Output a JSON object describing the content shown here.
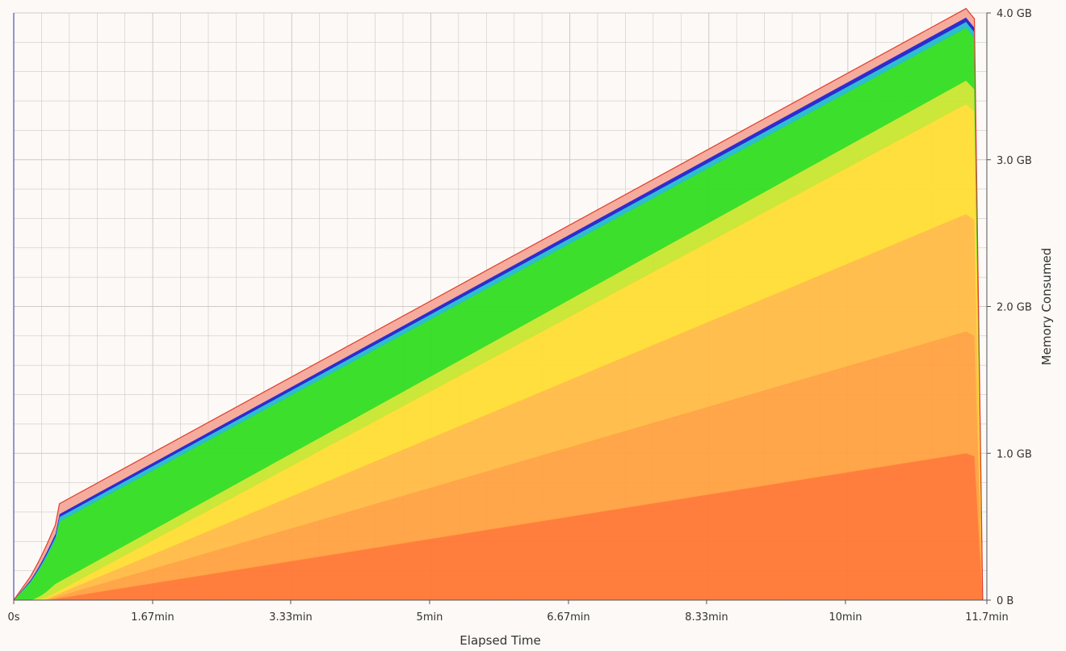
{
  "chart_data": {
    "type": "area",
    "title": "",
    "xlabel": "Elapsed Time",
    "ylabel": "Memory Consumed",
    "x_unit": "min",
    "y_unit": "GB",
    "xlim": [
      0,
      11.7
    ],
    "ylim": [
      0,
      4.0
    ],
    "x_ticks": [
      {
        "value": 0,
        "label": "0s"
      },
      {
        "value": 1.67,
        "label": "1.67min"
      },
      {
        "value": 3.33,
        "label": "3.33min"
      },
      {
        "value": 5,
        "label": "5min"
      },
      {
        "value": 6.67,
        "label": "6.67min"
      },
      {
        "value": 8.33,
        "label": "8.33min"
      },
      {
        "value": 10,
        "label": "10min"
      },
      {
        "value": 11.7,
        "label": "11.7min"
      }
    ],
    "y_ticks": [
      {
        "value": 0,
        "label": "0 B"
      },
      {
        "value": 1.0,
        "label": "1.0 GB"
      },
      {
        "value": 2.0,
        "label": "2.0 GB"
      },
      {
        "value": 3.0,
        "label": "3.0 GB"
      },
      {
        "value": 4.0,
        "label": "4.0 GB"
      }
    ],
    "y_axis_side": "right",
    "grid": true,
    "stacked": true,
    "peak": {
      "x": 11.5,
      "y": 3.93
    },
    "series": [
      {
        "color": "#ff7733",
        "x": [
          0,
          0.4,
          11.45,
          11.55,
          11.65
        ],
        "y": [
          0,
          0,
          1.0,
          0.98,
          0
        ]
      },
      {
        "color": "#ffa040",
        "x": [
          0,
          0.35,
          11.45,
          11.55,
          11.65
        ],
        "y": [
          0,
          0,
          0.83,
          0.82,
          0
        ]
      },
      {
        "color": "#ffbb44",
        "x": [
          0,
          0.3,
          11.45,
          11.55,
          11.65
        ],
        "y": [
          0,
          0,
          0.8,
          0.79,
          0
        ]
      },
      {
        "color": "#ffdd33",
        "x": [
          0,
          0.25,
          11.45,
          11.55,
          11.65
        ],
        "y": [
          0,
          0,
          0.75,
          0.74,
          0
        ]
      },
      {
        "color": "#c8e62f",
        "x": [
          0,
          0.2,
          0.5,
          11.45,
          11.55,
          11.65
        ],
        "y": [
          0,
          0,
          0.06,
          0.16,
          0.15,
          0
        ]
      },
      {
        "color": "#33dd22",
        "x": [
          0,
          0.5,
          0.55,
          11.45,
          11.55,
          11.65
        ],
        "y": [
          0,
          0.3,
          0.41,
          0.36,
          0.35,
          0
        ]
      },
      {
        "color": "#22bbcc",
        "x": [
          0,
          0.5,
          0.55,
          11.45,
          11.55,
          11.65
        ],
        "y": [
          0,
          0.02,
          0.03,
          0.04,
          0.04,
          0
        ]
      },
      {
        "color": "#2222cc",
        "x": [
          0,
          0.5,
          0.55,
          11.45,
          11.55,
          11.65
        ],
        "y": [
          0,
          0.02,
          0.02,
          0.03,
          0.03,
          0
        ]
      },
      {
        "color": "#f5a898",
        "x": [
          0,
          0.5,
          0.55,
          11.45,
          11.55,
          11.65
        ],
        "y": [
          0,
          0.06,
          0.07,
          0.06,
          0.06,
          0
        ]
      }
    ],
    "colors": {
      "background": "#fcf9f6",
      "grid": "#cfcac5",
      "peak_outline": "#e23b2b"
    }
  }
}
